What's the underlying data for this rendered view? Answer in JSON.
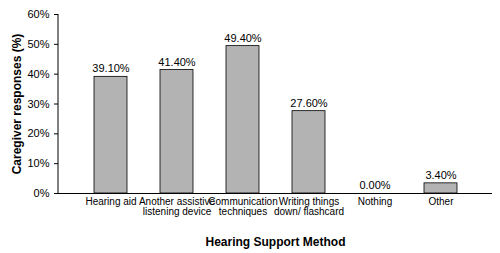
{
  "chart_data": {
    "type": "bar",
    "categories": [
      "Hearing aid",
      "Another assistive listening device",
      "Communication techniques",
      "Writing things down/ flashcard",
      "Nothing",
      "Other"
    ],
    "values": [
      39.1,
      41.4,
      49.4,
      27.6,
      0,
      3.4
    ],
    "value_labels": [
      "39.10%",
      "41.40%",
      "49.40%",
      "27.60%",
      "0.00%",
      "3.40%"
    ],
    "color": "#b3b3b3",
    "x_label": "Hearing Support Method",
    "y_label": "Caregiver responses (%)",
    "ylim": [
      0,
      60
    ],
    "yticks": [
      {
        "value": 0,
        "label": "0%"
      },
      {
        "value": 10,
        "label": "10%"
      },
      {
        "value": 20,
        "label": "20%"
      },
      {
        "value": 30,
        "label": "30%"
      },
      {
        "value": 40,
        "label": "40%"
      },
      {
        "value": 50,
        "label": "50%"
      },
      {
        "value": 60,
        "label": "60%"
      }
    ],
    "grid": false,
    "data_labels": true
  }
}
